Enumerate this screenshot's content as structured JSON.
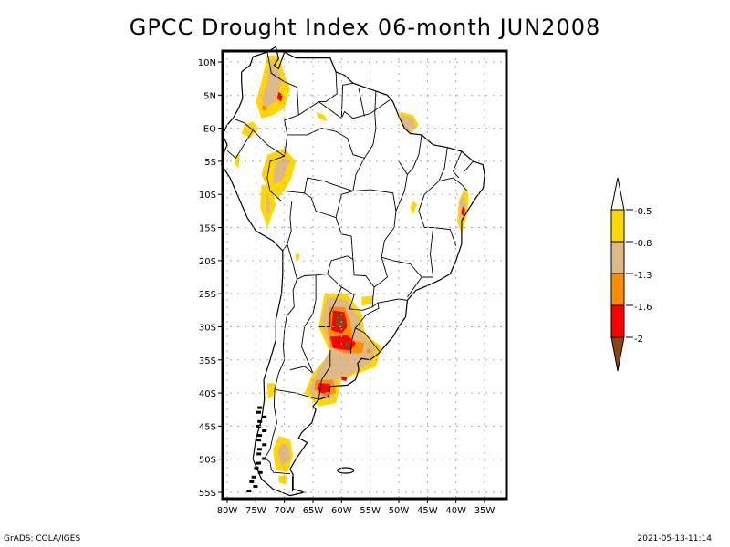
{
  "title": "GPCC Drought Index 06-month JUN2008",
  "footer": {
    "left": "GrADS: COLA/IGES",
    "right": "2021-05-13-11:14"
  },
  "map": {
    "region": "South America",
    "projection": "lat-lon",
    "lon_range": [
      -81,
      -31
    ],
    "lat_range": [
      -56,
      11.5
    ],
    "lat_ticks": [
      {
        "value": 10,
        "label": "10N"
      },
      {
        "value": 5,
        "label": "5N"
      },
      {
        "value": 0,
        "label": "EQ"
      },
      {
        "value": -5,
        "label": "5S"
      },
      {
        "value": -10,
        "label": "10S"
      },
      {
        "value": -15,
        "label": "15S"
      },
      {
        "value": -20,
        "label": "20S"
      },
      {
        "value": -25,
        "label": "25S"
      },
      {
        "value": -30,
        "label": "30S"
      },
      {
        "value": -35,
        "label": "35S"
      },
      {
        "value": -40,
        "label": "40S"
      },
      {
        "value": -45,
        "label": "45S"
      },
      {
        "value": -50,
        "label": "50S"
      },
      {
        "value": -55,
        "label": "55S"
      }
    ],
    "lon_ticks": [
      {
        "value": -80,
        "label": "80W"
      },
      {
        "value": -75,
        "label": "75W"
      },
      {
        "value": -70,
        "label": "70W"
      },
      {
        "value": -65,
        "label": "65W"
      },
      {
        "value": -60,
        "label": "60W"
      },
      {
        "value": -55,
        "label": "55W"
      },
      {
        "value": -50,
        "label": "50W"
      },
      {
        "value": -45,
        "label": "45W"
      },
      {
        "value": -40,
        "label": "40W"
      },
      {
        "value": -35,
        "label": "35W"
      }
    ],
    "gridlines": true
  },
  "legend": {
    "placement": "right",
    "levels": [
      {
        "label": "-0.5",
        "color": "#ffffff"
      },
      {
        "label": "-0.8",
        "color": "#ffd700"
      },
      {
        "label": "-1.3",
        "color": "#deb887"
      },
      {
        "label": "-1.6",
        "color": "#ff8c00"
      },
      {
        "label": "-2",
        "color": "#ff0000"
      },
      {
        "label": "",
        "color": "#8b4513"
      }
    ]
  },
  "colors": {
    "class_0_5": "#ffd700",
    "class_0_8": "#deb887",
    "class_1_3": "#ff8c00",
    "class_1_6": "#ff0000",
    "class_2": "#8b4513"
  },
  "drought_patches": [
    {
      "name": "north-colombia",
      "level": "class_0_5",
      "pts": [
        [
          -73,
          11
        ],
        [
          -71,
          11
        ],
        [
          -70,
          8
        ],
        [
          -69,
          6
        ],
        [
          -70,
          3
        ],
        [
          -72,
          2
        ],
        [
          -74,
          1.5
        ],
        [
          -75,
          4
        ],
        [
          -74,
          7
        ]
      ]
    },
    {
      "name": "north-colombia",
      "level": "class_0_8",
      "pts": [
        [
          -72.5,
          10.5
        ],
        [
          -71,
          9
        ],
        [
          -70.5,
          7
        ],
        [
          -71.5,
          4
        ],
        [
          -73.5,
          3
        ],
        [
          -74,
          4.5
        ],
        [
          -73,
          7
        ]
      ]
    },
    {
      "name": "north-colombia",
      "level": "class_1_6",
      "pts": [
        [
          -71,
          5.5
        ],
        [
          -70.3,
          5
        ],
        [
          -70.6,
          4
        ],
        [
          -71.3,
          4.5
        ]
      ]
    },
    {
      "name": "north-colombia",
      "level": "class_1_3",
      "pts": [
        [
          -73.8,
          3.5
        ],
        [
          -73,
          3.2
        ],
        [
          -73.2,
          2.6
        ],
        [
          -74,
          2.8
        ]
      ]
    },
    {
      "name": "ecuador-colombia",
      "level": "class_0_5",
      "pts": [
        [
          -77,
          0.5
        ],
        [
          -75.5,
          1
        ],
        [
          -74.5,
          0
        ],
        [
          -76,
          -1.5
        ],
        [
          -77.5,
          -0.8
        ]
      ]
    },
    {
      "name": "peru-west",
      "level": "class_0_5",
      "pts": [
        [
          -78.5,
          -4
        ],
        [
          -77.8,
          -4
        ],
        [
          -78,
          -6
        ],
        [
          -78.6,
          -5.5
        ]
      ]
    },
    {
      "name": "peru-amazon",
      "level": "class_0_5",
      "pts": [
        [
          -73,
          -4
        ],
        [
          -70,
          -3
        ],
        [
          -68,
          -5
        ],
        [
          -69,
          -8
        ],
        [
          -71,
          -10.5
        ],
        [
          -73,
          -9
        ],
        [
          -74,
          -7
        ]
      ]
    },
    {
      "name": "peru-amazon",
      "level": "class_0_8",
      "pts": [
        [
          -70.5,
          -4
        ],
        [
          -69,
          -5
        ],
        [
          -70.5,
          -8
        ],
        [
          -72,
          -8.5
        ],
        [
          -71.8,
          -6
        ]
      ]
    },
    {
      "name": "peru-south",
      "level": "class_0_5",
      "pts": [
        [
          -74,
          -8.5
        ],
        [
          -72.2,
          -9
        ],
        [
          -71.5,
          -11.5
        ],
        [
          -73,
          -15
        ],
        [
          -74.2,
          -12
        ]
      ]
    },
    {
      "name": "peru-south",
      "level": "class_0_8",
      "pts": [
        [
          -73,
          -10
        ],
        [
          -72.5,
          -11
        ],
        [
          -72.5,
          -13
        ],
        [
          -73.3,
          -12.5
        ]
      ]
    },
    {
      "name": "venezuela-east",
      "level": "class_0_5",
      "pts": [
        [
          -64.5,
          2.5
        ],
        [
          -63,
          2
        ],
        [
          -62.5,
          1
        ],
        [
          -64,
          1.5
        ]
      ]
    },
    {
      "name": "amazon-mouth",
      "level": "class_0_5",
      "pts": [
        [
          -50,
          2.5
        ],
        [
          -47.5,
          2
        ],
        [
          -46.5,
          0.5
        ],
        [
          -48,
          -1
        ],
        [
          -49.5,
          0.5
        ]
      ]
    },
    {
      "name": "amazon-mouth",
      "level": "class_0_8",
      "pts": [
        [
          -49.5,
          2
        ],
        [
          -47.5,
          1.5
        ],
        [
          -47,
          0
        ],
        [
          -48.3,
          -0.5
        ],
        [
          -49.5,
          0.8
        ]
      ]
    },
    {
      "name": "bahia-coast",
      "level": "class_0_5",
      "pts": [
        [
          -38.5,
          -9
        ],
        [
          -37.8,
          -10
        ],
        [
          -38,
          -13
        ],
        [
          -39,
          -16
        ],
        [
          -39.8,
          -14
        ],
        [
          -39.5,
          -11
        ]
      ]
    },
    {
      "name": "bahia-coast",
      "level": "class_0_8",
      "pts": [
        [
          -38.6,
          -10
        ],
        [
          -38.2,
          -11.5
        ],
        [
          -38.6,
          -14
        ],
        [
          -39.4,
          -13.5
        ],
        [
          -39.3,
          -11
        ]
      ]
    },
    {
      "name": "bahia-coast",
      "level": "class_1_6",
      "pts": [
        [
          -38.8,
          -11.8
        ],
        [
          -38.4,
          -12.2
        ],
        [
          -38.7,
          -13.3
        ],
        [
          -39.1,
          -12.8
        ]
      ]
    },
    {
      "name": "goias",
      "level": "class_0_5",
      "pts": [
        [
          -47.5,
          -11
        ],
        [
          -46.8,
          -11.5
        ],
        [
          -47.5,
          -13
        ],
        [
          -48,
          -12
        ]
      ]
    },
    {
      "name": "paraguay-argentina",
      "level": "class_0_5",
      "pts": [
        [
          -63,
          -25
        ],
        [
          -59,
          -25
        ],
        [
          -56.5,
          -28
        ],
        [
          -56,
          -31
        ],
        [
          -53,
          -33
        ],
        [
          -54,
          -36
        ],
        [
          -57,
          -37
        ],
        [
          -60,
          -38
        ],
        [
          -61,
          -41.5
        ],
        [
          -64,
          -42
        ],
        [
          -66.5,
          -40
        ],
        [
          -65,
          -37
        ],
        [
          -62,
          -34
        ],
        [
          -64,
          -30
        ]
      ]
    },
    {
      "name": "paraguay-argentina",
      "level": "class_0_8",
      "pts": [
        [
          -62.5,
          -25.5
        ],
        [
          -59,
          -26
        ],
        [
          -57,
          -28.5
        ],
        [
          -56.5,
          -31
        ],
        [
          -54,
          -33.5
        ],
        [
          -55,
          -35.5
        ],
        [
          -58,
          -37
        ],
        [
          -61,
          -38
        ],
        [
          -61.5,
          -40.8
        ],
        [
          -64,
          -41
        ],
        [
          -65.8,
          -39.5
        ],
        [
          -64,
          -36.5
        ],
        [
          -62,
          -33.5
        ],
        [
          -63.5,
          -29
        ]
      ]
    },
    {
      "name": "paraguay-argentina",
      "level": "class_1_3",
      "pts": [
        [
          -62,
          -27
        ],
        [
          -59.5,
          -27
        ],
        [
          -58.5,
          -29
        ],
        [
          -58,
          -32
        ],
        [
          -56,
          -32.5
        ],
        [
          -56.5,
          -34
        ],
        [
          -59.5,
          -34
        ],
        [
          -62,
          -33
        ],
        [
          -62.5,
          -30
        ]
      ]
    },
    {
      "name": "paraguay-argentina",
      "level": "class_1_6",
      "pts": [
        [
          -61.5,
          -27.5
        ],
        [
          -59.5,
          -27.8
        ],
        [
          -59,
          -30
        ],
        [
          -60,
          -31
        ],
        [
          -61.8,
          -30.5
        ]
      ]
    },
    {
      "name": "paraguay-argentina",
      "level": "class_1_6",
      "pts": [
        [
          -62,
          -31.5
        ],
        [
          -59,
          -31.3
        ],
        [
          -57.5,
          -32.5
        ],
        [
          -58.5,
          -33.6
        ],
        [
          -61.5,
          -33.2
        ]
      ]
    },
    {
      "name": "paraguay-argentina",
      "level": "class_2",
      "pts": [
        [
          -61,
          -28
        ],
        [
          -59.8,
          -28.3
        ],
        [
          -59.5,
          -29.8
        ],
        [
          -60.5,
          -30.2
        ],
        [
          -61.2,
          -29.3
        ]
      ]
    },
    {
      "name": "paraguay-argentina",
      "level": "class_2",
      "pts": [
        [
          -59.5,
          -32.2
        ],
        [
          -58.6,
          -32.3
        ],
        [
          -58.7,
          -33.2
        ],
        [
          -59.5,
          -33
        ]
      ]
    },
    {
      "name": "buenos-aires",
      "level": "class_1_3",
      "pts": [
        [
          -64.5,
          -38
        ],
        [
          -61.5,
          -38
        ],
        [
          -61,
          -40
        ],
        [
          -63,
          -40.5
        ],
        [
          -64.8,
          -39.5
        ]
      ]
    },
    {
      "name": "buenos-aires",
      "level": "class_1_6",
      "pts": [
        [
          -64,
          -38.5
        ],
        [
          -62,
          -38.6
        ],
        [
          -62,
          -39.8
        ],
        [
          -63.5,
          -40
        ],
        [
          -64.3,
          -39.4
        ]
      ]
    },
    {
      "name": "buenos-aires",
      "level": "class_1_6",
      "pts": [
        [
          -60,
          -37.5
        ],
        [
          -59,
          -37.6
        ],
        [
          -59.2,
          -38.2
        ],
        [
          -60,
          -38
        ]
      ]
    },
    {
      "name": "uruguay",
      "level": "class_0_5",
      "pts": [
        [
          -56,
          -33
        ],
        [
          -54,
          -33.2
        ],
        [
          -54.3,
          -34.5
        ],
        [
          -56,
          -34.5
        ]
      ]
    },
    {
      "name": "uruguay",
      "level": "class_1_3",
      "pts": [
        [
          -55.5,
          -33.3
        ],
        [
          -54.8,
          -33.5
        ],
        [
          -55,
          -34
        ],
        [
          -55.6,
          -33.9
        ]
      ]
    },
    {
      "name": "parana",
      "level": "class_0_5",
      "pts": [
        [
          -56.5,
          -25.5
        ],
        [
          -54.5,
          -25.3
        ],
        [
          -54.5,
          -26.5
        ],
        [
          -56.5,
          -26.8
        ]
      ]
    },
    {
      "name": "chile-central",
      "level": "class_0_5",
      "pts": [
        [
          -73,
          -38.5
        ],
        [
          -71.5,
          -38.5
        ],
        [
          -71.5,
          -40
        ],
        [
          -72.8,
          -41
        ]
      ]
    },
    {
      "name": "patagonia",
      "level": "class_0_5",
      "pts": [
        [
          -71,
          -46.5
        ],
        [
          -69,
          -47
        ],
        [
          -68.5,
          -49.5
        ],
        [
          -69.5,
          -52
        ],
        [
          -71.5,
          -51.5
        ],
        [
          -72,
          -48.5
        ]
      ]
    },
    {
      "name": "patagonia",
      "level": "class_0_8",
      "pts": [
        [
          -70.5,
          -47.5
        ],
        [
          -69.2,
          -48
        ],
        [
          -69,
          -50
        ],
        [
          -70.5,
          -51
        ],
        [
          -71.2,
          -49
        ]
      ]
    },
    {
      "name": "tierra-del-fuego",
      "level": "class_0_5",
      "pts": [
        [
          -71,
          -52.5
        ],
        [
          -69.5,
          -52.5
        ],
        [
          -69.8,
          -53.8
        ],
        [
          -71,
          -53.5
        ]
      ]
    },
    {
      "name": "misc-small",
      "level": "class_0_5",
      "pts": [
        [
          -68,
          -19
        ],
        [
          -67.3,
          -19
        ],
        [
          -67.5,
          -20
        ],
        [
          -68,
          -19.8
        ]
      ]
    }
  ]
}
